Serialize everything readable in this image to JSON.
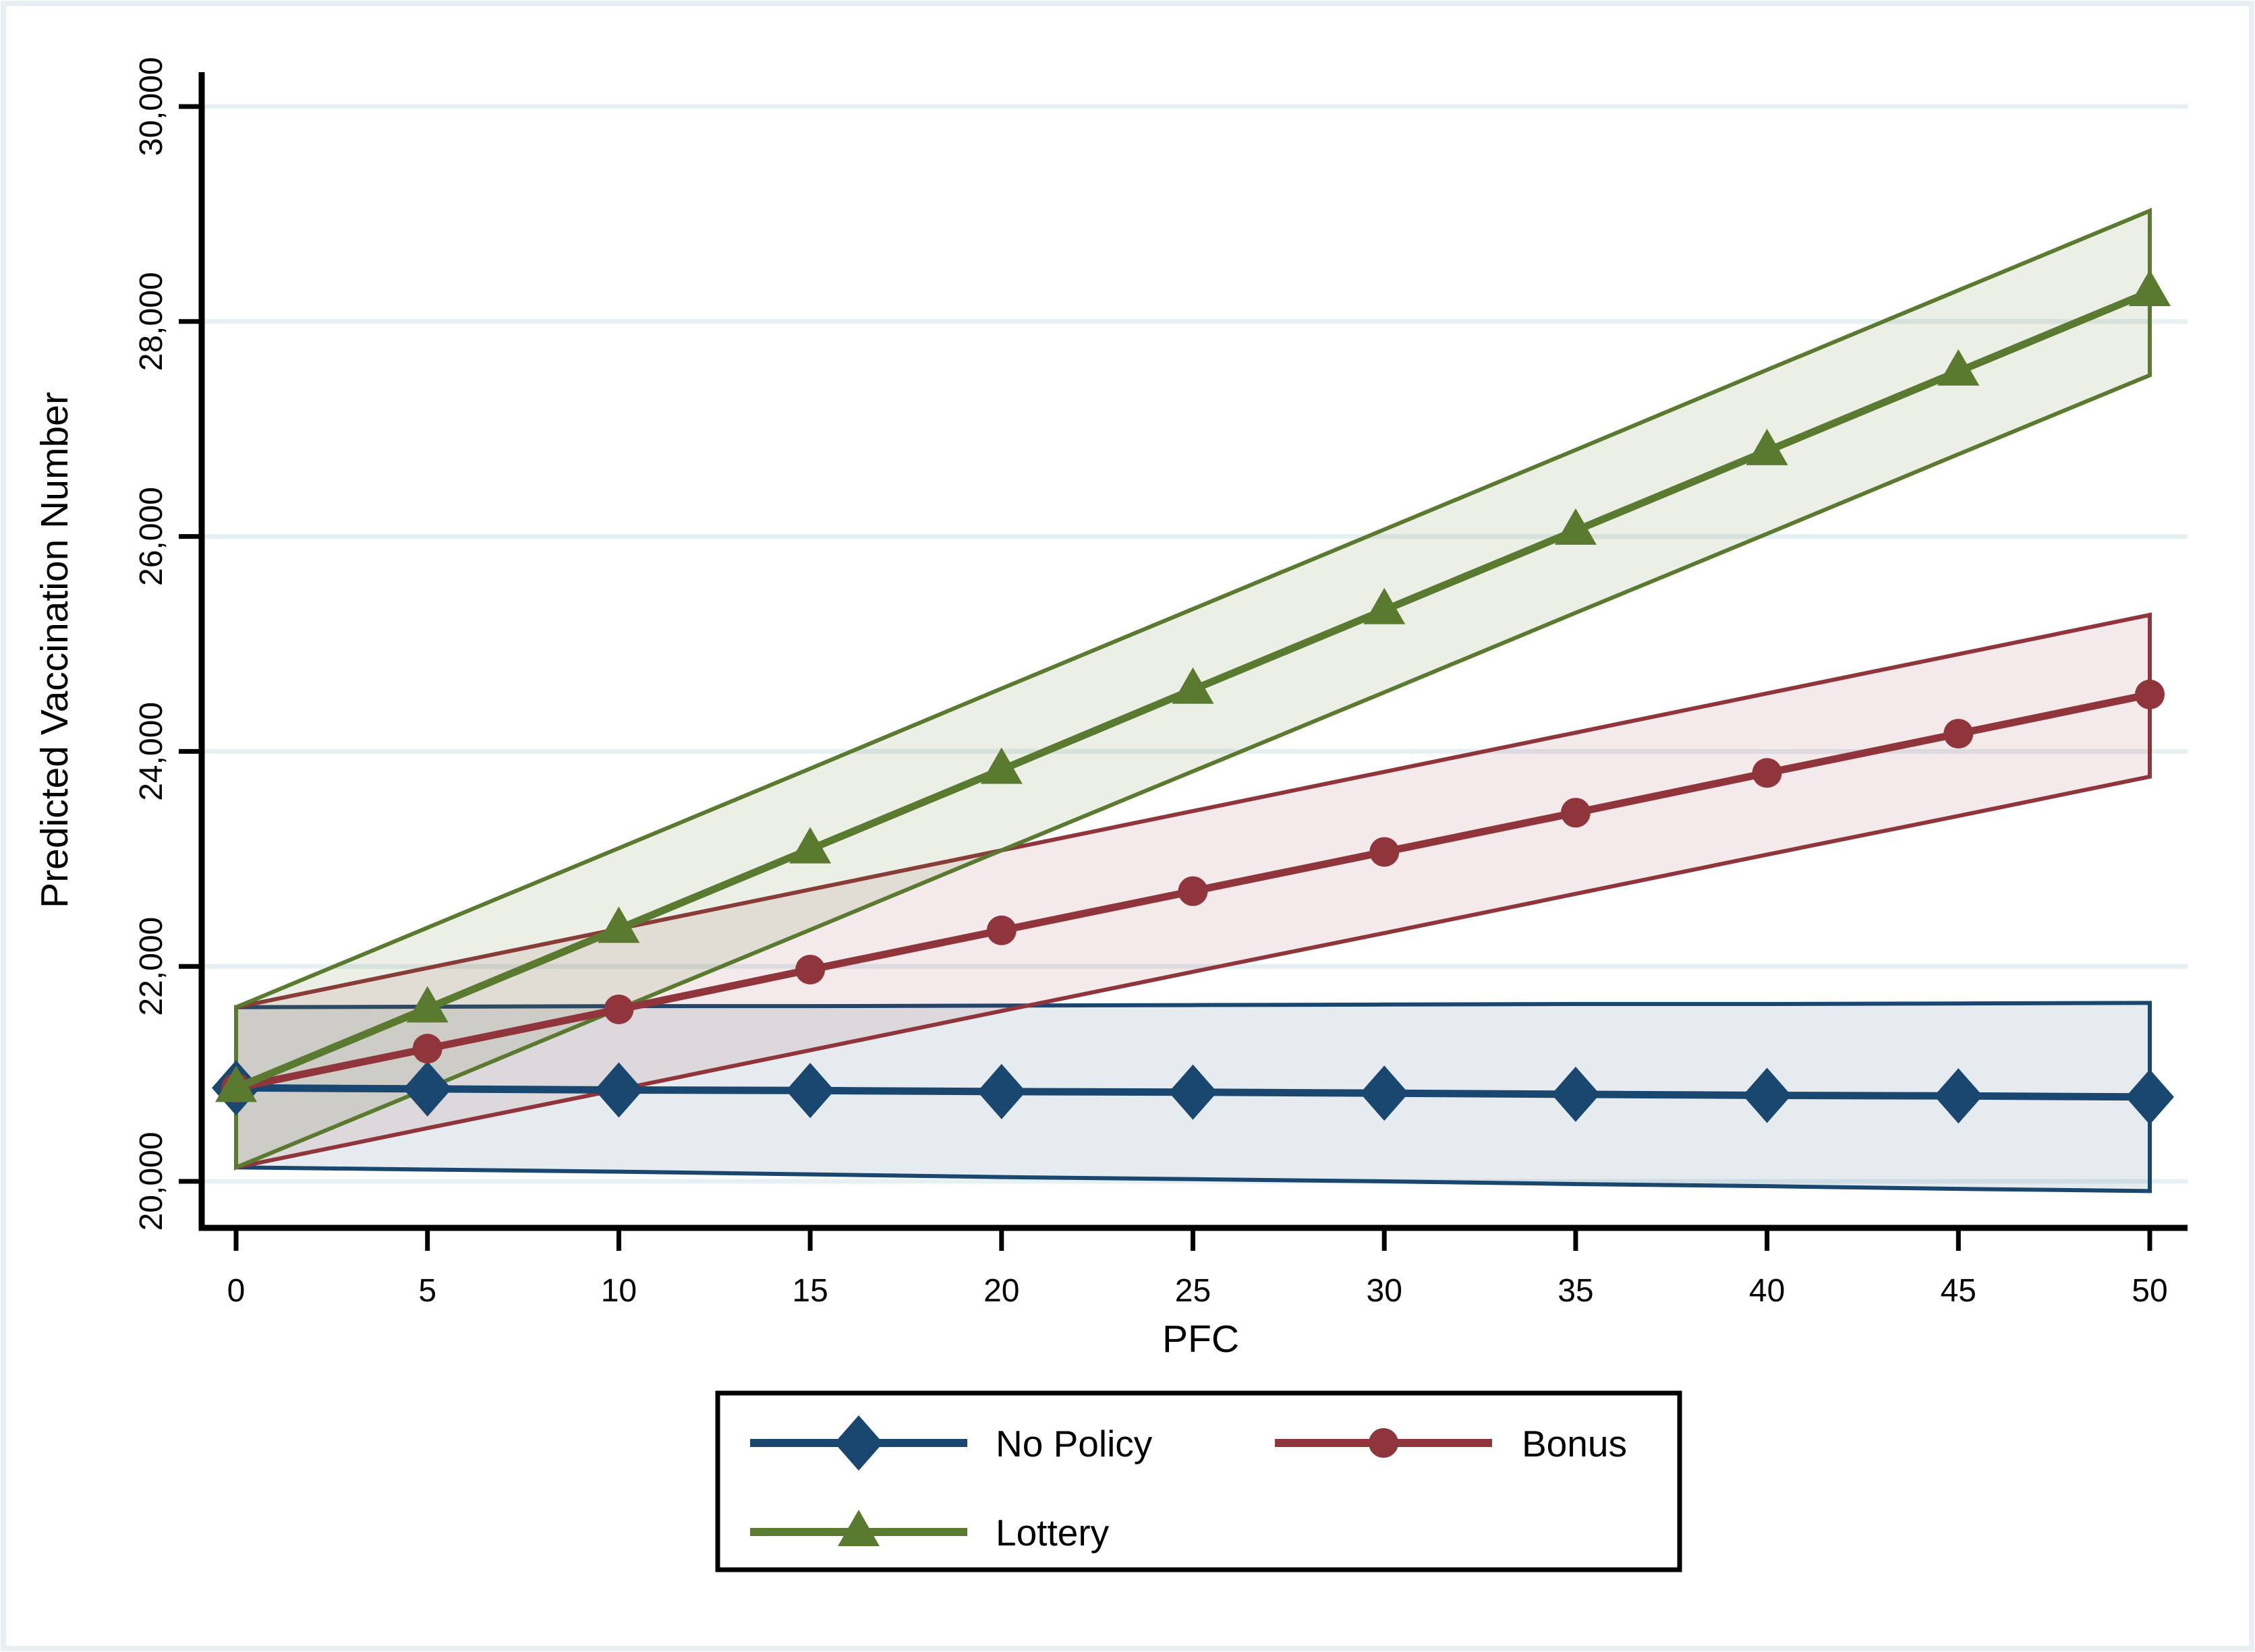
{
  "figure": {
    "background": "#ffffff",
    "frame_border_color": "#e7eff2",
    "axis_color": "#000000",
    "gridline_color": "#e6eff2",
    "text_color": "#000000",
    "legend_border_color": "#000000"
  },
  "chart_data": {
    "type": "line",
    "title": "",
    "xlabel": "PFC",
    "ylabel": "Predicted Vaccination Number",
    "x": [
      0,
      5,
      10,
      15,
      20,
      25,
      30,
      35,
      40,
      45,
      50
    ],
    "x_ticks": [
      0,
      5,
      10,
      15,
      20,
      25,
      30,
      35,
      40,
      45,
      50
    ],
    "y_ticks": [
      20000,
      22000,
      24000,
      26000,
      28000,
      30000
    ],
    "xlim": [
      0,
      50
    ],
    "ylim": [
      19550,
      30320
    ],
    "grid": "horizontal",
    "legend_position": "bottom-outside",
    "series": [
      {
        "name": "No Policy",
        "marker": "diamond",
        "color": "#1a476f",
        "band_fill": "rgba(26,71,111,0.11)",
        "values": [
          20870,
          20860,
          20850,
          20845,
          20835,
          20830,
          20820,
          20810,
          20800,
          20795,
          20785
        ],
        "ci_upper": [
          21620,
          21625,
          21630,
          21630,
          21635,
          21640,
          21645,
          21650,
          21650,
          21655,
          21660
        ],
        "ci_lower": [
          20130,
          20110,
          20090,
          20065,
          20040,
          20020,
          20000,
          19975,
          19955,
          19930,
          19910
        ]
      },
      {
        "name": "Bonus",
        "marker": "circle",
        "color": "#90353b",
        "band_fill": "rgba(144,53,59,0.10)",
        "values": [
          20870,
          21235,
          21600,
          21970,
          22335,
          22700,
          23065,
          23430,
          23800,
          24165,
          24530
        ],
        "ci_upper": [
          21620,
          21985,
          22350,
          22715,
          23080,
          23445,
          23810,
          24175,
          24540,
          24905,
          25270
        ],
        "ci_lower": [
          20130,
          20495,
          20855,
          21220,
          21585,
          21950,
          22310,
          22675,
          23040,
          23400,
          23765
        ]
      },
      {
        "name": "Lottery",
        "marker": "triangle",
        "color": "#5a7a2f",
        "band_fill": "rgba(90,122,47,0.12)",
        "values": [
          20870,
          21610,
          22350,
          23090,
          23830,
          24575,
          25315,
          26055,
          26795,
          27535,
          28275
        ],
        "ci_upper": [
          21620,
          22360,
          23100,
          23840,
          24585,
          25325,
          26065,
          26805,
          27550,
          28290,
          29030
        ],
        "ci_lower": [
          20130,
          20865,
          21605,
          22340,
          23080,
          23815,
          24550,
          25290,
          26025,
          26765,
          27500
        ]
      }
    ]
  }
}
